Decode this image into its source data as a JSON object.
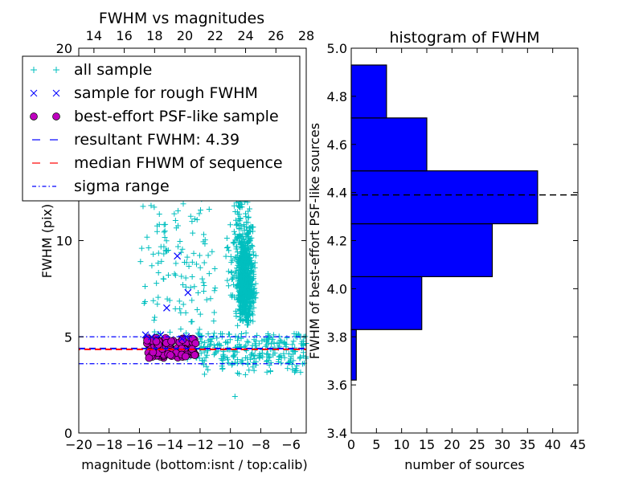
{
  "chart_data": [
    {
      "type": "scatter",
      "title": "FWHM vs magnitudes",
      "xlabel": "magnitude (bottom:isnt / top:calib)",
      "ylabel": "FWHM (pix)",
      "xlim": [
        -20,
        -5
      ],
      "ylim": [
        0,
        20
      ],
      "top_xlim": [
        13,
        28
      ],
      "xticks": [
        "−20",
        "−18",
        "−16",
        "−14",
        "−12",
        "−10",
        "−8",
        "−6"
      ],
      "xtick_values": [
        -20,
        -18,
        -16,
        -14,
        -12,
        -10,
        -8,
        -6
      ],
      "yticks": [
        "0",
        "5",
        "10",
        "20"
      ],
      "ytick_values": [
        0,
        5,
        10,
        20
      ],
      "top_xticks": [
        "14",
        "16",
        "18",
        "20",
        "22",
        "24",
        "26",
        "28"
      ],
      "top_xtick_values": [
        14,
        16,
        18,
        20,
        22,
        24,
        26,
        28
      ],
      "lines": {
        "resultant": 4.39,
        "median": 4.35,
        "sigma_upper": 5.0,
        "sigma_lower": 3.6
      },
      "legend": [
        {
          "label": "all sample",
          "marker": "plus",
          "color": "#00bfbf"
        },
        {
          "label": "sample for rough FWHM",
          "marker": "x",
          "color": "#0000ff"
        },
        {
          "label": "best-effort PSF-like sample",
          "marker": "circle",
          "color": "#bf00bf"
        },
        {
          "label": "resultant FWHM: 4.39",
          "marker": "dash",
          "color": "#0000ff"
        },
        {
          "label": "median FHWM of sequence",
          "marker": "dash",
          "color": "#ff0000"
        },
        {
          "label": "sigma range",
          "marker": "dashdot",
          "color": "#0000ff"
        }
      ],
      "series": [
        {
          "name": "sample for rough FWHM",
          "points": [
            [
              -13.5,
              9.2
            ],
            [
              -12.8,
              7.3
            ],
            [
              -14.2,
              6.5
            ],
            [
              -15.6,
              5.1
            ],
            [
              -15.2,
              5.0
            ],
            [
              -14.6,
              5.1
            ],
            [
              -12.9,
              5.0
            ],
            [
              -13.2,
              4.9
            ]
          ]
        }
      ]
    },
    {
      "type": "bar",
      "orientation": "horizontal",
      "title": "histogram of FWHM",
      "xlabel": "number of sources",
      "ylabel": "FWHM of best-effort PSF-like sources",
      "xlim": [
        0,
        45
      ],
      "ylim": [
        3.4,
        5.0
      ],
      "xticks": [
        "0",
        "5",
        "10",
        "15",
        "20",
        "25",
        "30",
        "35",
        "40",
        "45"
      ],
      "xtick_values": [
        0,
        5,
        10,
        15,
        20,
        25,
        30,
        35,
        40,
        45
      ],
      "yticks": [
        "3.4",
        "3.6",
        "3.8",
        "4.0",
        "4.2",
        "4.4",
        "4.6",
        "4.8",
        "5.0"
      ],
      "ytick_values": [
        3.4,
        3.6,
        3.8,
        4.0,
        4.2,
        4.4,
        4.6,
        4.8,
        5.0
      ],
      "bins": [
        {
          "low": 3.62,
          "high": 3.83,
          "count": 1
        },
        {
          "low": 3.83,
          "high": 4.05,
          "count": 14
        },
        {
          "low": 4.05,
          "high": 4.27,
          "count": 28
        },
        {
          "low": 4.27,
          "high": 4.49,
          "count": 37
        },
        {
          "low": 4.49,
          "high": 4.71,
          "count": 15
        },
        {
          "low": 4.71,
          "high": 4.93,
          "count": 7
        }
      ],
      "reference_line": 4.39
    }
  ],
  "colors": {
    "cyan": "#00bfbf",
    "blue": "#0000ff",
    "magenta": "#bf00bf",
    "red": "#ff0000"
  }
}
